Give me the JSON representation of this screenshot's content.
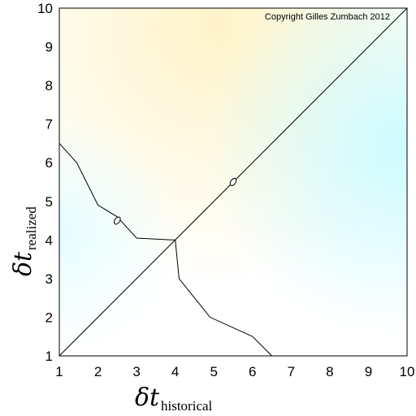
{
  "chart_data": {
    "type": "line",
    "title": "",
    "copyright": "Copyright Gilles Zumbach 2012",
    "xlabel": {
      "symbol": "δt",
      "subscript": "historical"
    },
    "ylabel": {
      "symbol": "δt",
      "subscript": "realized"
    },
    "xlim": [
      1,
      10
    ],
    "ylim": [
      1,
      10
    ],
    "xticks": [
      1,
      2,
      3,
      4,
      5,
      6,
      7,
      8,
      9,
      10
    ],
    "yticks": [
      1,
      2,
      3,
      4,
      5,
      6,
      7,
      8,
      9,
      10
    ],
    "grid": false,
    "legend": "none",
    "series": [
      {
        "x": [
          1,
          10
        ],
        "y": [
          1,
          10
        ],
        "marker": {
          "x": 5.5,
          "y": 5.5
        }
      },
      {
        "x": [
          1.0,
          1.45,
          2.0,
          2.5,
          3.0,
          3.9,
          4.0,
          4.1,
          4.9,
          6.0,
          6.5
        ],
        "y": [
          6.5,
          6.0,
          4.9,
          4.6,
          4.05,
          4.0,
          4.0,
          3.0,
          2.0,
          1.5,
          1.0
        ],
        "marker": {
          "x": 2.5,
          "y": 4.5
        }
      }
    ],
    "colors": {
      "line": "#000000",
      "background_warm": "#fff6cf",
      "background_cool": "#cffbff"
    }
  }
}
